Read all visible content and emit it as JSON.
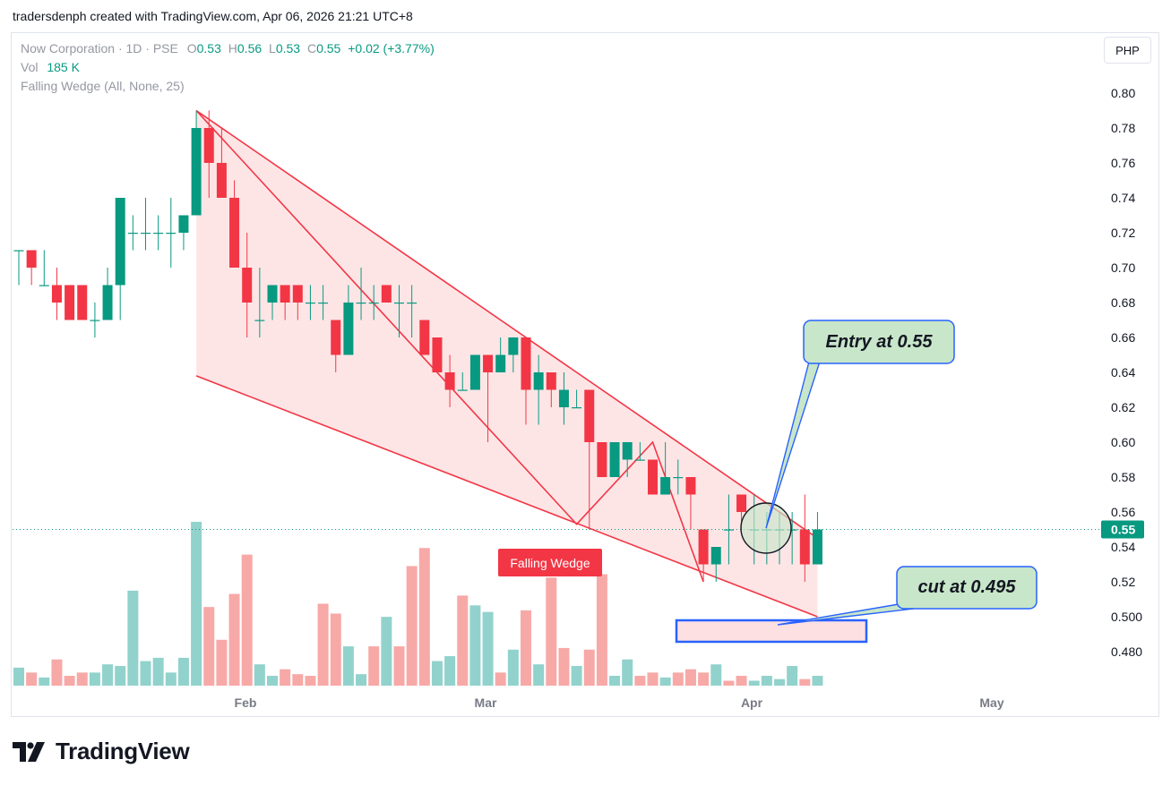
{
  "caption": "tradersdenph created with TradingView.com, Apr 06, 2026 21:21 UTC+8",
  "legend": {
    "symbol": "Now Corporation · 1D · PSE",
    "o_label": "O",
    "o_value": "0.53",
    "h_label": "H",
    "h_value": "0.56",
    "l_label": "L",
    "l_value": "0.53",
    "c_label": "C",
    "c_value": "0.55",
    "change": "+0.02 (+3.77%)",
    "vol_label": "Vol",
    "vol_value": "185 K",
    "indicator": "Falling Wedge (All, None, 25)"
  },
  "currency_button": "PHP",
  "brand": "TradingView",
  "colors": {
    "up": "#089981",
    "down": "#f23645",
    "wedge_fill": "#fde0e2",
    "callout_fill": "#c8e6c9",
    "callout_border": "#2962ff"
  },
  "chart_data": {
    "type": "candlestick",
    "y_ticks": [
      "0.80",
      "0.78",
      "0.76",
      "0.74",
      "0.72",
      "0.70",
      "0.68",
      "0.66",
      "0.64",
      "0.62",
      "0.60",
      "0.58",
      "0.56",
      "0.54",
      "0.52",
      "0.500",
      "0.480"
    ],
    "x_ticks": [
      "Feb",
      "Mar",
      "Apr",
      "May"
    ],
    "last_price": "0.55",
    "candles": [
      {
        "o": 0.71,
        "h": 0.71,
        "l": 0.69,
        "c": 0.71
      },
      {
        "o": 0.71,
        "h": 0.71,
        "l": 0.69,
        "c": 0.7
      },
      {
        "o": 0.69,
        "h": 0.71,
        "l": 0.69,
        "c": 0.69
      },
      {
        "o": 0.69,
        "h": 0.7,
        "l": 0.67,
        "c": 0.68
      },
      {
        "o": 0.69,
        "h": 0.69,
        "l": 0.67,
        "c": 0.67
      },
      {
        "o": 0.69,
        "h": 0.69,
        "l": 0.67,
        "c": 0.67
      },
      {
        "o": 0.67,
        "h": 0.68,
        "l": 0.66,
        "c": 0.67
      },
      {
        "o": 0.67,
        "h": 0.7,
        "l": 0.67,
        "c": 0.69
      },
      {
        "o": 0.69,
        "h": 0.74,
        "l": 0.67,
        "c": 0.74
      },
      {
        "o": 0.72,
        "h": 0.73,
        "l": 0.71,
        "c": 0.72
      },
      {
        "o": 0.72,
        "h": 0.74,
        "l": 0.71,
        "c": 0.72
      },
      {
        "o": 0.72,
        "h": 0.73,
        "l": 0.71,
        "c": 0.72
      },
      {
        "o": 0.72,
        "h": 0.74,
        "l": 0.7,
        "c": 0.72
      },
      {
        "o": 0.72,
        "h": 0.73,
        "l": 0.71,
        "c": 0.73
      },
      {
        "o": 0.73,
        "h": 0.79,
        "l": 0.73,
        "c": 0.78
      },
      {
        "o": 0.78,
        "h": 0.79,
        "l": 0.74,
        "c": 0.76
      },
      {
        "o": 0.76,
        "h": 0.78,
        "l": 0.74,
        "c": 0.74
      },
      {
        "o": 0.74,
        "h": 0.75,
        "l": 0.7,
        "c": 0.7
      },
      {
        "o": 0.7,
        "h": 0.72,
        "l": 0.66,
        "c": 0.68
      },
      {
        "o": 0.67,
        "h": 0.7,
        "l": 0.66,
        "c": 0.67
      },
      {
        "o": 0.68,
        "h": 0.69,
        "l": 0.67,
        "c": 0.69
      },
      {
        "o": 0.69,
        "h": 0.69,
        "l": 0.67,
        "c": 0.68
      },
      {
        "o": 0.69,
        "h": 0.69,
        "l": 0.67,
        "c": 0.68
      },
      {
        "o": 0.68,
        "h": 0.69,
        "l": 0.67,
        "c": 0.68
      },
      {
        "o": 0.68,
        "h": 0.69,
        "l": 0.67,
        "c": 0.68
      },
      {
        "o": 0.67,
        "h": 0.67,
        "l": 0.64,
        "c": 0.65
      },
      {
        "o": 0.65,
        "h": 0.69,
        "l": 0.65,
        "c": 0.68
      },
      {
        "o": 0.68,
        "h": 0.7,
        "l": 0.67,
        "c": 0.68
      },
      {
        "o": 0.68,
        "h": 0.69,
        "l": 0.67,
        "c": 0.68
      },
      {
        "o": 0.69,
        "h": 0.69,
        "l": 0.68,
        "c": 0.68
      },
      {
        "o": 0.68,
        "h": 0.69,
        "l": 0.66,
        "c": 0.68
      },
      {
        "o": 0.68,
        "h": 0.69,
        "l": 0.66,
        "c": 0.68
      },
      {
        "o": 0.67,
        "h": 0.67,
        "l": 0.65,
        "c": 0.65
      },
      {
        "o": 0.66,
        "h": 0.66,
        "l": 0.64,
        "c": 0.64
      },
      {
        "o": 0.64,
        "h": 0.65,
        "l": 0.62,
        "c": 0.63
      },
      {
        "o": 0.63,
        "h": 0.64,
        "l": 0.63,
        "c": 0.63
      },
      {
        "o": 0.63,
        "h": 0.65,
        "l": 0.63,
        "c": 0.65
      },
      {
        "o": 0.65,
        "h": 0.65,
        "l": 0.6,
        "c": 0.64
      },
      {
        "o": 0.64,
        "h": 0.66,
        "l": 0.64,
        "c": 0.65
      },
      {
        "o": 0.65,
        "h": 0.66,
        "l": 0.64,
        "c": 0.66
      },
      {
        "o": 0.66,
        "h": 0.66,
        "l": 0.61,
        "c": 0.63
      },
      {
        "o": 0.63,
        "h": 0.65,
        "l": 0.61,
        "c": 0.64
      },
      {
        "o": 0.64,
        "h": 0.64,
        "l": 0.62,
        "c": 0.63
      },
      {
        "o": 0.62,
        "h": 0.64,
        "l": 0.61,
        "c": 0.63
      },
      {
        "o": 0.62,
        "h": 0.63,
        "l": 0.62,
        "c": 0.62
      },
      {
        "o": 0.63,
        "h": 0.63,
        "l": 0.55,
        "c": 0.6
      },
      {
        "o": 0.6,
        "h": 0.6,
        "l": 0.58,
        "c": 0.58
      },
      {
        "o": 0.58,
        "h": 0.6,
        "l": 0.58,
        "c": 0.6
      },
      {
        "o": 0.59,
        "h": 0.6,
        "l": 0.58,
        "c": 0.6
      },
      {
        "o": 0.59,
        "h": 0.6,
        "l": 0.59,
        "c": 0.59
      },
      {
        "o": 0.59,
        "h": 0.59,
        "l": 0.57,
        "c": 0.57
      },
      {
        "o": 0.57,
        "h": 0.6,
        "l": 0.57,
        "c": 0.58
      },
      {
        "o": 0.58,
        "h": 0.59,
        "l": 0.57,
        "c": 0.58
      },
      {
        "o": 0.58,
        "h": 0.58,
        "l": 0.55,
        "c": 0.57
      },
      {
        "o": 0.55,
        "h": 0.55,
        "l": 0.52,
        "c": 0.53
      },
      {
        "o": 0.53,
        "h": 0.54,
        "l": 0.52,
        "c": 0.54
      },
      {
        "o": 0.55,
        "h": 0.57,
        "l": 0.53,
        "c": 0.55
      },
      {
        "o": 0.57,
        "h": 0.57,
        "l": 0.55,
        "c": 0.56
      },
      {
        "o": 0.55,
        "h": 0.57,
        "l": 0.53,
        "c": 0.55
      },
      {
        "o": 0.55,
        "h": 0.56,
        "l": 0.53,
        "c": 0.55
      },
      {
        "o": 0.55,
        "h": 0.56,
        "l": 0.53,
        "c": 0.55
      },
      {
        "o": 0.55,
        "h": 0.56,
        "l": 0.53,
        "c": 0.55
      },
      {
        "o": 0.55,
        "h": 0.57,
        "l": 0.52,
        "c": 0.53
      },
      {
        "o": 0.53,
        "h": 0.56,
        "l": 0.53,
        "c": 0.55
      }
    ],
    "volume_relative": [
      0.11,
      0.08,
      0.05,
      0.16,
      0.06,
      0.08,
      0.08,
      0.13,
      0.12,
      0.58,
      0.15,
      0.17,
      0.08,
      0.17,
      1.0,
      0.48,
      0.28,
      0.56,
      0.8,
      0.13,
      0.06,
      0.1,
      0.07,
      0.06,
      0.5,
      0.44,
      0.24,
      0.07,
      0.24,
      0.42,
      0.24,
      0.73,
      0.84,
      0.15,
      0.18,
      0.55,
      0.49,
      0.45,
      0.08,
      0.22,
      0.46,
      0.13,
      0.66,
      0.23,
      0.12,
      0.22,
      0.68,
      0.06,
      0.16,
      0.06,
      0.08,
      0.05,
      0.08,
      0.1,
      0.08,
      0.13,
      0.03,
      0.06,
      0.03,
      0.06,
      0.04,
      0.12,
      0.04,
      0.06
    ],
    "volume_up": [
      true,
      false,
      true,
      false,
      false,
      false,
      true,
      true,
      true,
      true,
      true,
      true,
      true,
      true,
      true,
      false,
      false,
      false,
      false,
      true,
      true,
      false,
      false,
      false,
      false,
      false,
      true,
      true,
      false,
      true,
      false,
      false,
      false,
      true,
      true,
      false,
      true,
      true,
      false,
      true,
      false,
      true,
      false,
      false,
      true,
      false,
      false,
      true,
      true,
      false,
      false,
      true,
      false,
      false,
      false,
      true,
      false,
      false,
      true,
      true,
      true,
      true,
      false,
      true
    ],
    "pattern": {
      "label": "Falling Wedge",
      "upper": [
        [
          14,
          0.79
        ],
        [
          63,
          0.545
        ]
      ],
      "lower": [
        [
          14,
          0.638
        ],
        [
          63,
          0.5
        ]
      ],
      "zigzag": [
        [
          14,
          0.79
        ],
        [
          44,
          0.553
        ],
        [
          50,
          0.6
        ],
        [
          54,
          0.52
        ]
      ]
    },
    "annotations": [
      {
        "text": "Entry at 0.55"
      },
      {
        "text": "cut at 0.495"
      }
    ]
  }
}
